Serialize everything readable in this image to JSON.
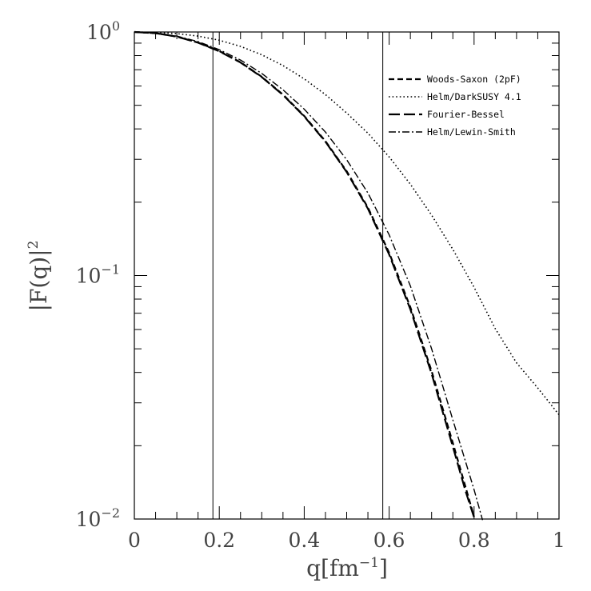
{
  "chart_data": {
    "type": "line",
    "title": "",
    "xlabel": "q[fm",
    "xlabel_sup": "−1",
    "xlabel_end": "]",
    "ylabel": "|F(q)|",
    "ylabel_sup": "2",
    "xlim": [
      0,
      1
    ],
    "ylim": [
      0.01,
      1
    ],
    "y_scale": "log",
    "x_ticks": [
      {
        "value": 0,
        "label": "0"
      },
      {
        "value": 0.2,
        "label": "0.2"
      },
      {
        "value": 0.4,
        "label": "0.4"
      },
      {
        "value": 0.6,
        "label": "0.6"
      },
      {
        "value": 0.8,
        "label": "0.8"
      },
      {
        "value": 1,
        "label": "1"
      }
    ],
    "y_ticks": [
      {
        "value": 1,
        "base": "10",
        "exp": "0"
      },
      {
        "value": 0.1,
        "base": "10",
        "exp": "−1"
      },
      {
        "value": 0.01,
        "base": "10",
        "exp": "−2"
      }
    ],
    "vertical_lines": [
      0.185,
      0.585
    ],
    "legend_position": "top-right",
    "grid": false,
    "series": [
      {
        "name": "Woods-Saxon (2pF)",
        "dash": "short-dash",
        "points": [
          [
            0,
            1
          ],
          [
            0.05,
            0.989
          ],
          [
            0.1,
            0.957
          ],
          [
            0.15,
            0.905
          ],
          [
            0.2,
            0.835
          ],
          [
            0.25,
            0.751
          ],
          [
            0.3,
            0.655
          ],
          [
            0.35,
            0.553
          ],
          [
            0.4,
            0.452
          ],
          [
            0.45,
            0.356
          ],
          [
            0.5,
            0.268
          ],
          [
            0.55,
            0.19
          ],
          [
            0.6,
            0.124
          ],
          [
            0.65,
            0.074
          ],
          [
            0.7,
            0.0405
          ],
          [
            0.75,
            0.0205
          ],
          [
            0.78,
            0.0135
          ],
          [
            0.8,
            0.0102
          ]
        ]
      },
      {
        "name": "Helm/DarkSUSY 4.1",
        "dash": "dotted",
        "points": [
          [
            0,
            1
          ],
          [
            0.05,
            0.996
          ],
          [
            0.1,
            0.985
          ],
          [
            0.15,
            0.962
          ],
          [
            0.2,
            0.925
          ],
          [
            0.25,
            0.873
          ],
          [
            0.3,
            0.806
          ],
          [
            0.35,
            0.728
          ],
          [
            0.4,
            0.642
          ],
          [
            0.45,
            0.553
          ],
          [
            0.5,
            0.465
          ],
          [
            0.55,
            0.384
          ],
          [
            0.6,
            0.307
          ],
          [
            0.65,
            0.237
          ],
          [
            0.7,
            0.177
          ],
          [
            0.75,
            0.128
          ],
          [
            0.8,
            0.0895
          ],
          [
            0.85,
            0.0605
          ],
          [
            0.9,
            0.0438
          ],
          [
            0.95,
            0.0345
          ],
          [
            1,
            0.0268
          ]
        ]
      },
      {
        "name": "Fourier-Bessel",
        "dash": "long-dash",
        "points": [
          [
            0,
            1
          ],
          [
            0.05,
            0.989
          ],
          [
            0.1,
            0.957
          ],
          [
            0.15,
            0.904
          ],
          [
            0.2,
            0.833
          ],
          [
            0.25,
            0.749
          ],
          [
            0.3,
            0.653
          ],
          [
            0.35,
            0.551
          ],
          [
            0.4,
            0.45
          ],
          [
            0.45,
            0.354
          ],
          [
            0.5,
            0.266
          ],
          [
            0.55,
            0.188
          ],
          [
            0.6,
            0.122
          ],
          [
            0.65,
            0.0725
          ],
          [
            0.7,
            0.0395
          ],
          [
            0.75,
            0.0198
          ],
          [
            0.78,
            0.013
          ],
          [
            0.802,
            0.0099
          ]
        ]
      },
      {
        "name": "Helm/Lewin-Smith",
        "dash": "dash-dot",
        "points": [
          [
            0,
            1
          ],
          [
            0.05,
            0.99
          ],
          [
            0.1,
            0.962
          ],
          [
            0.15,
            0.913
          ],
          [
            0.2,
            0.846
          ],
          [
            0.25,
            0.767
          ],
          [
            0.3,
            0.676
          ],
          [
            0.35,
            0.579
          ],
          [
            0.4,
            0.482
          ],
          [
            0.45,
            0.388
          ],
          [
            0.5,
            0.299
          ],
          [
            0.55,
            0.218
          ],
          [
            0.6,
            0.147
          ],
          [
            0.65,
            0.0905
          ],
          [
            0.7,
            0.05
          ],
          [
            0.75,
            0.0255
          ],
          [
            0.8,
            0.0132
          ],
          [
            0.82,
            0.0099
          ]
        ]
      }
    ]
  }
}
